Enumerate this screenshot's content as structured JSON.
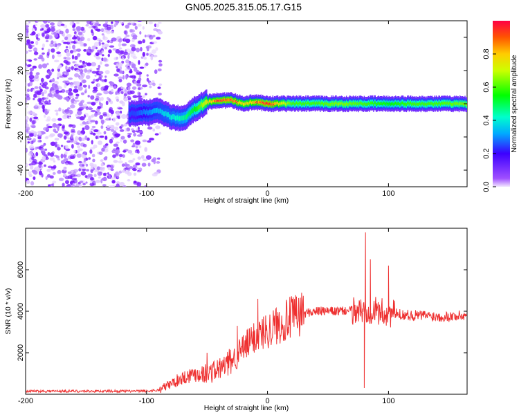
{
  "title": "GN05.2025.315.05.17.G15",
  "chart_data": [
    {
      "type": "heatmap",
      "xlabel": "Height of straight line (km)",
      "ylabel": "Frequency (Hz)",
      "xlim": [
        -200,
        165
      ],
      "ylim": [
        -50,
        50
      ],
      "x_ticks": [
        -200,
        -100,
        0,
        100
      ],
      "y_ticks": [
        -40,
        -20,
        0,
        20,
        40
      ],
      "colorbar": {
        "label": "Normalized spectral amplitude",
        "range": [
          0,
          1
        ],
        "ticks": [
          0.0,
          0.2,
          0.4,
          0.6,
          0.8
        ]
      },
      "ridge": {
        "x": [
          -110,
          -100,
          -90,
          -80,
          -70,
          -60,
          -50,
          -40,
          -30,
          -20,
          -10,
          0,
          20,
          40,
          60,
          80,
          100,
          120,
          140,
          165
        ],
        "frequency": [
          -6,
          -5,
          -4,
          -8,
          -9,
          -3,
          1,
          2,
          2,
          0,
          1,
          0,
          0,
          0,
          0,
          0,
          0,
          0,
          0,
          0
        ],
        "amplitude": [
          0.25,
          0.3,
          0.35,
          0.4,
          0.45,
          0.55,
          0.75,
          0.85,
          0.85,
          0.75,
          0.8,
          0.9,
          0.6,
          0.6,
          0.65,
          0.6,
          0.55,
          0.6,
          0.6,
          0.65
        ]
      },
      "noise_region_x": [
        -200,
        -88
      ]
    },
    {
      "type": "line",
      "xlabel": "Height of straight line (km)",
      "ylabel": "SNR (10 * v/v)",
      "xlim": [
        -200,
        165
      ],
      "ylim": [
        0,
        8000
      ],
      "x_ticks": [
        -200,
        -100,
        0,
        100
      ],
      "y_ticks": [
        2000,
        4000,
        6000
      ],
      "color": "#ee3030",
      "series": [
        {
          "name": "SNR",
          "x": [
            -200,
            -150,
            -100,
            -90,
            -80,
            -70,
            -60,
            -50,
            -40,
            -30,
            -20,
            -10,
            0,
            10,
            20,
            30,
            40,
            50,
            60,
            70,
            80,
            85,
            90,
            100,
            110,
            120,
            130,
            140,
            150,
            165
          ],
          "values": [
            150,
            150,
            150,
            200,
            500,
            800,
            1000,
            1000,
            1200,
            1600,
            2200,
            2800,
            3100,
            3400,
            3700,
            3900,
            4000,
            4000,
            4000,
            4050,
            4000,
            4100,
            4000,
            3900,
            3850,
            3800,
            3800,
            3750,
            3750,
            3800
          ],
          "spikes": [
            {
              "x": -50,
              "value": 2000
            },
            {
              "x": -25,
              "value": 3300
            },
            {
              "x": -8,
              "value": 4600
            },
            {
              "x": 80,
              "value": 300
            },
            {
              "x": 81,
              "value": 7800
            },
            {
              "x": 85,
              "value": 6500
            },
            {
              "x": 100,
              "value": 6200
            }
          ]
        }
      ]
    }
  ]
}
